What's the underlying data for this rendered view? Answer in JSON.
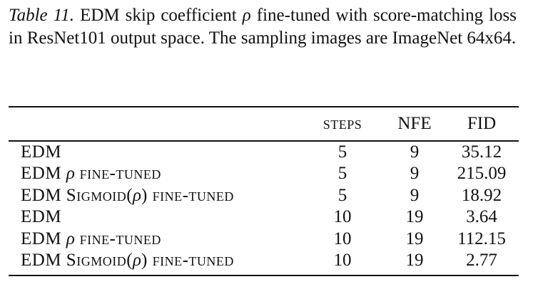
{
  "caption": {
    "label": "Table 11.",
    "text_before_rho": " EDM skip coefficient ",
    "rho": "ρ",
    "text_after_rho": " fine-tuned with score-matching loss in ResNet101 output space. The sampling images are ImageNet 64x64."
  },
  "table": {
    "headers": {
      "method": "",
      "steps": "steps",
      "nfe": "NFE",
      "fid": "FID"
    },
    "rows": [
      {
        "base": "EDM",
        "rho": "",
        "suffix": "",
        "steps": "5",
        "nfe": "9",
        "fid": "35.12"
      },
      {
        "base": "EDM ",
        "rho": "ρ",
        "suffix": " fine-tuned",
        "steps": "5",
        "nfe": "9",
        "fid": "215.09"
      },
      {
        "base": "EDM Sigmoid(",
        "rho": "ρ",
        "suffix": ") fine-tuned",
        "steps": "5",
        "nfe": "9",
        "fid": "18.92"
      },
      {
        "base": "EDM",
        "rho": "",
        "suffix": "",
        "steps": "10",
        "nfe": "19",
        "fid": "3.64"
      },
      {
        "base": "EDM ",
        "rho": "ρ",
        "suffix": " fine-tuned",
        "steps": "10",
        "nfe": "19",
        "fid": "112.15"
      },
      {
        "base": "EDM Sigmoid(",
        "rho": "ρ",
        "suffix": ") fine-tuned",
        "steps": "10",
        "nfe": "19",
        "fid": "2.77"
      }
    ]
  }
}
